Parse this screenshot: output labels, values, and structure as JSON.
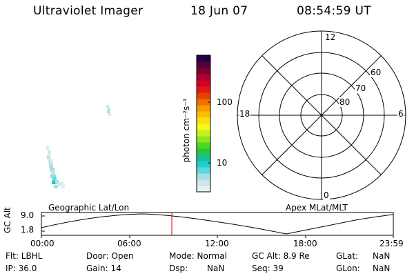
{
  "header": {
    "title": "Ultraviolet Imager",
    "date": "18 Jun 07",
    "time": "08:54:59 UT"
  },
  "colorbar": {
    "unit_label": "photon cm⁻²s⁻¹",
    "ticks": [
      {
        "label": "100",
        "value": 100
      },
      {
        "label": "10",
        "value": 10
      }
    ],
    "colors": [
      "#e8f0f0",
      "#cfe6ea",
      "#a7e0e4",
      "#5ad8dc",
      "#1ccfcf",
      "#18c090",
      "#22c840",
      "#4ad81e",
      "#8ee61e",
      "#c8f21c",
      "#f8f81c",
      "#f8e010",
      "#f8c000",
      "#f89a00",
      "#f07000",
      "#e84000",
      "#e01818",
      "#d00028",
      "#b00030",
      "#800030",
      "#500040",
      "#200040"
    ]
  },
  "polar": {
    "clock_labels": [
      "12",
      "18",
      "6",
      "0"
    ],
    "lat_labels": [
      "60",
      "70",
      "80"
    ]
  },
  "map": {
    "label": "Geographic Lat/Lon"
  },
  "orbit": {
    "right_label": "Apex MLat/MLT",
    "ylabel": "GC Alt",
    "yticks": [
      "9.0",
      "1.8"
    ],
    "xticks": [
      "00:00",
      "06:00",
      "12:00",
      "18:00",
      "23:59"
    ],
    "current_time": "08:54:59"
  },
  "info": {
    "flt": "Flt: LBHL",
    "door": "Door: Open",
    "mode": "Mode: Normal",
    "gcalt": "GC Alt: 8.9 Re",
    "glat_label": "GLat:",
    "glat_val": "NaN",
    "ip": "IP: 36.0",
    "gain": "Gain: 14",
    "dsp_label": "Dsp:",
    "dsp_val": "NaN",
    "seq": "Seq: 39",
    "glon_label": "GLon:",
    "glon_val": "NaN"
  }
}
